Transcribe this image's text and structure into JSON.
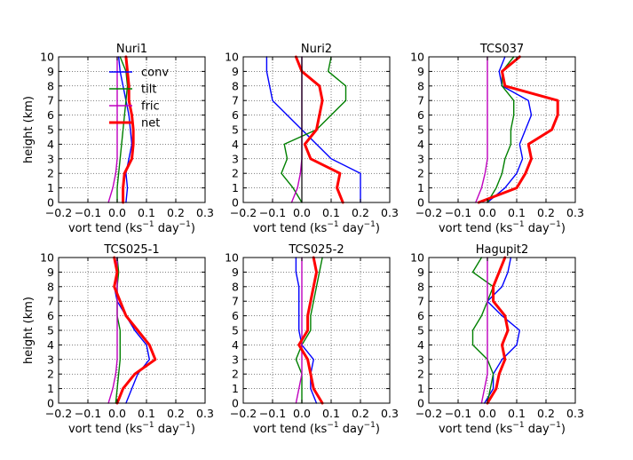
{
  "chart_data": [
    {
      "type": "line",
      "title": "Nuri1",
      "xlabel": "vort tend (ks",
      "xlabel_sup1": "−1",
      "xlabel_mid": " day",
      "xlabel_sup2": "−1",
      "xlabel_end": ")",
      "ylabel": "height (km)",
      "xlim": [
        -0.2,
        0.3
      ],
      "ylim": [
        0,
        10
      ],
      "xticks": [
        "−0.2",
        "−0.1",
        "0.0",
        "0.1",
        "0.2",
        "0.3"
      ],
      "yticks": [
        "0",
        "1",
        "2",
        "3",
        "4",
        "5",
        "6",
        "7",
        "8",
        "9",
        "10"
      ],
      "grid": true,
      "legend": "top-right",
      "heights": [
        0,
        1,
        2,
        3,
        4,
        5,
        6,
        7,
        8,
        9,
        10
      ],
      "series": [
        {
          "name": "conv",
          "color": "#0000ff",
          "width": 1.4,
          "values": [
            0.03,
            0.035,
            0.03,
            0.04,
            0.05,
            0.045,
            0.04,
            0.03,
            0.02,
            0.01,
            0.005
          ]
        },
        {
          "name": "tilt",
          "color": "#008000",
          "width": 1.4,
          "values": [
            0.0,
            0.0,
            0.005,
            0.01,
            0.015,
            0.02,
            0.025,
            0.03,
            0.035,
            0.03,
            0.01
          ]
        },
        {
          "name": "fric",
          "color": "#bf00bf",
          "width": 1.4,
          "values": [
            -0.03,
            -0.015,
            -0.005,
            0.0,
            0.0,
            0.0,
            0.0,
            0.0,
            0.0,
            0.0,
            0.0
          ]
        },
        {
          "name": "net",
          "color": "#ff0000",
          "width": 3,
          "values": [
            0.02,
            0.02,
            0.025,
            0.05,
            0.055,
            0.055,
            0.05,
            0.04,
            0.04,
            0.035,
            0.03
          ]
        }
      ]
    },
    {
      "type": "line",
      "title": "Nuri2",
      "xlabel": "vort tend (ks",
      "xlabel_sup1": "−1",
      "xlabel_mid": " day",
      "xlabel_sup2": "−1",
      "xlabel_end": ")",
      "ylabel": "",
      "xlim": [
        -0.2,
        0.3
      ],
      "ylim": [
        0,
        10
      ],
      "xticks": [
        "−0.2",
        "−0.1",
        "0.0",
        "0.1",
        "0.2",
        "0.3"
      ],
      "yticks": [
        "0",
        "1",
        "2",
        "3",
        "4",
        "5",
        "6",
        "7",
        "8",
        "9",
        "10"
      ],
      "grid": true,
      "legend": "",
      "heights": [
        0,
        1,
        2,
        3,
        4,
        5,
        6,
        7,
        8,
        9,
        10
      ],
      "series": [
        {
          "name": "conv",
          "color": "#0000ff",
          "width": 1.4,
          "values": [
            0.2,
            0.2,
            0.2,
            0.1,
            0.05,
            0.0,
            -0.05,
            -0.1,
            -0.11,
            -0.12,
            -0.12
          ]
        },
        {
          "name": "tilt",
          "color": "#008000",
          "width": 1.4,
          "values": [
            0.0,
            -0.03,
            -0.07,
            -0.05,
            -0.06,
            0.05,
            0.1,
            0.15,
            0.15,
            0.09,
            0.1
          ]
        },
        {
          "name": "fric",
          "color": "#bf00bf",
          "width": 1.4,
          "values": [
            -0.035,
            -0.015,
            -0.005,
            0.0,
            0.0,
            0.0,
            0.0,
            0.0,
            0.0,
            0.0,
            0.0
          ]
        },
        {
          "name": "net",
          "color": "#ff0000",
          "width": 3,
          "values": [
            0.14,
            0.12,
            0.13,
            0.03,
            0.01,
            0.05,
            0.06,
            0.07,
            0.06,
            0.0,
            -0.02
          ]
        },
        {
          "name": "zero",
          "color": "#000000",
          "width": 1.2,
          "values": [
            0,
            0,
            0,
            0,
            0,
            0,
            0,
            0,
            0,
            0,
            0
          ]
        }
      ]
    },
    {
      "type": "line",
      "title": "TCS037",
      "xlabel": "vort tend (ks",
      "xlabel_sup1": "−1",
      "xlabel_mid": " day",
      "xlabel_sup2": "−1",
      "xlabel_end": ")",
      "ylabel": "",
      "xlim": [
        -0.2,
        0.3
      ],
      "ylim": [
        0,
        10
      ],
      "xticks": [
        "−0.2",
        "−0.1",
        "0.0",
        "0.1",
        "0.2",
        "0.3"
      ],
      "yticks": [
        "0",
        "1",
        "2",
        "3",
        "4",
        "5",
        "6",
        "7",
        "8",
        "9",
        "10"
      ],
      "grid": true,
      "legend": "",
      "heights": [
        0,
        1,
        2,
        3,
        4,
        5,
        6,
        7,
        8,
        9,
        10
      ],
      "series": [
        {
          "name": "conv",
          "color": "#0000ff",
          "width": 1.4,
          "values": [
            0.0,
            0.06,
            0.1,
            0.12,
            0.11,
            0.13,
            0.15,
            0.14,
            0.05,
            0.04,
            0.06
          ]
        },
        {
          "name": "tilt",
          "color": "#008000",
          "width": 1.4,
          "values": [
            0.0,
            0.03,
            0.05,
            0.06,
            0.08,
            0.08,
            0.09,
            0.09,
            0.05,
            0.05,
            0.09
          ]
        },
        {
          "name": "fric",
          "color": "#bf00bf",
          "width": 1.4,
          "values": [
            -0.04,
            -0.02,
            -0.008,
            0.0,
            0.0,
            0.0,
            0.0,
            0.0,
            0.0,
            0.0,
            0.0
          ]
        },
        {
          "name": "net",
          "color": "#ff0000",
          "width": 3,
          "values": [
            -0.03,
            0.1,
            0.13,
            0.15,
            0.14,
            0.22,
            0.24,
            0.24,
            0.06,
            0.05,
            0.11
          ]
        }
      ]
    },
    {
      "type": "line",
      "title": "TCS025-1",
      "xlabel": "vort tend (ks",
      "xlabel_sup1": "−1",
      "xlabel_mid": " day",
      "xlabel_sup2": "−1",
      "xlabel_end": ")",
      "ylabel": "height (km)",
      "xlim": [
        -0.2,
        0.3
      ],
      "ylim": [
        0,
        10
      ],
      "xticks": [
        "−0.2",
        "−0.1",
        "0.0",
        "0.1",
        "0.2",
        "0.3"
      ],
      "yticks": [
        "0",
        "1",
        "2",
        "3",
        "4",
        "5",
        "6",
        "7",
        "8",
        "9",
        "10"
      ],
      "grid": true,
      "legend": "",
      "heights": [
        0,
        1,
        2,
        3,
        4,
        5,
        6,
        7,
        8,
        9,
        10
      ],
      "series": [
        {
          "name": "conv",
          "color": "#0000ff",
          "width": 1.4,
          "values": [
            0.03,
            0.05,
            0.07,
            0.11,
            0.1,
            0.06,
            0.03,
            0.0,
            -0.01,
            0.0,
            0.0
          ]
        },
        {
          "name": "tilt",
          "color": "#008000",
          "width": 1.4,
          "values": [
            -0.005,
            0.0,
            0.005,
            0.01,
            0.01,
            0.01,
            0.0,
            0.0,
            0.0,
            0.005,
            0.0
          ]
        },
        {
          "name": "fric",
          "color": "#bf00bf",
          "width": 1.4,
          "values": [
            -0.03,
            -0.015,
            -0.005,
            0.0,
            0.0,
            0.0,
            0.0,
            0.0,
            0.0,
            0.0,
            0.0
          ]
        },
        {
          "name": "net",
          "color": "#ff0000",
          "width": 3,
          "values": [
            0.0,
            0.02,
            0.06,
            0.13,
            0.11,
            0.07,
            0.03,
            0.01,
            -0.01,
            0.0,
            -0.01
          ]
        }
      ]
    },
    {
      "type": "line",
      "title": "TCS025-2",
      "xlabel": "vort tend (ks",
      "xlabel_sup1": "−1",
      "xlabel_mid": " day",
      "xlabel_sup2": "−1",
      "xlabel_end": ")",
      "ylabel": "",
      "xlim": [
        -0.2,
        0.3
      ],
      "ylim": [
        0,
        10
      ],
      "xticks": [
        "−0.2",
        "−0.1",
        "0.0",
        "0.1",
        "0.2",
        "0.3"
      ],
      "yticks": [
        "0",
        "1",
        "2",
        "3",
        "4",
        "5",
        "6",
        "7",
        "8",
        "9",
        "10"
      ],
      "grid": true,
      "legend": "",
      "heights": [
        0,
        1,
        2,
        3,
        4,
        5,
        6,
        7,
        8,
        9,
        10
      ],
      "series": [
        {
          "name": "conv",
          "color": "#0000ff",
          "width": 1.4,
          "values": [
            0.05,
            0.03,
            0.03,
            0.04,
            0.0,
            -0.01,
            -0.01,
            -0.01,
            -0.01,
            -0.02,
            -0.02
          ]
        },
        {
          "name": "tilt",
          "color": "#008000",
          "width": 1.4,
          "values": [
            0.0,
            0.0,
            0.0,
            -0.02,
            0.0,
            0.03,
            0.03,
            0.04,
            0.05,
            0.06,
            0.07
          ]
        },
        {
          "name": "fric",
          "color": "#bf00bf",
          "width": 1.4,
          "values": [
            -0.02,
            -0.01,
            0.0,
            0.0,
            0.0,
            0.0,
            0.0,
            0.0,
            0.0,
            0.0,
            0.0
          ]
        },
        {
          "name": "net",
          "color": "#ff0000",
          "width": 3,
          "values": [
            0.07,
            0.04,
            0.03,
            0.02,
            -0.01,
            0.02,
            0.02,
            0.03,
            0.04,
            0.05,
            0.04
          ]
        }
      ]
    },
    {
      "type": "line",
      "title": "Hagupit2",
      "xlabel": "vort tend (ks",
      "xlabel_sup1": "−1",
      "xlabel_mid": " day",
      "xlabel_sup2": "−1",
      "xlabel_end": ")",
      "ylabel": "",
      "xlim": [
        -0.2,
        0.3
      ],
      "ylim": [
        0,
        10
      ],
      "xticks": [
        "−0.2",
        "−0.1",
        "0.0",
        "0.1",
        "0.2",
        "0.3"
      ],
      "yticks": [
        "0",
        "1",
        "2",
        "3",
        "4",
        "5",
        "6",
        "7",
        "8",
        "9",
        "10"
      ],
      "grid": true,
      "legend": "",
      "heights": [
        0,
        1,
        2,
        3,
        4,
        5,
        6,
        7,
        8,
        9,
        10
      ],
      "series": [
        {
          "name": "conv",
          "color": "#0000ff",
          "width": 1.4,
          "values": [
            -0.01,
            0.02,
            0.02,
            0.05,
            0.1,
            0.11,
            0.05,
            0.0,
            0.05,
            0.07,
            0.08
          ]
        },
        {
          "name": "tilt",
          "color": "#008000",
          "width": 1.4,
          "values": [
            0.0,
            0.01,
            0.02,
            0.0,
            -0.05,
            -0.05,
            -0.02,
            0.0,
            0.02,
            -0.05,
            -0.02
          ]
        },
        {
          "name": "fric",
          "color": "#bf00bf",
          "width": 1.4,
          "values": [
            -0.02,
            -0.01,
            0.0,
            0.0,
            0.0,
            0.0,
            0.0,
            0.0,
            0.0,
            0.0,
            0.0
          ]
        },
        {
          "name": "net",
          "color": "#ff0000",
          "width": 3,
          "values": [
            0.0,
            0.03,
            0.04,
            0.06,
            0.05,
            0.07,
            0.06,
            0.02,
            0.02,
            0.04,
            0.06
          ]
        }
      ]
    }
  ]
}
